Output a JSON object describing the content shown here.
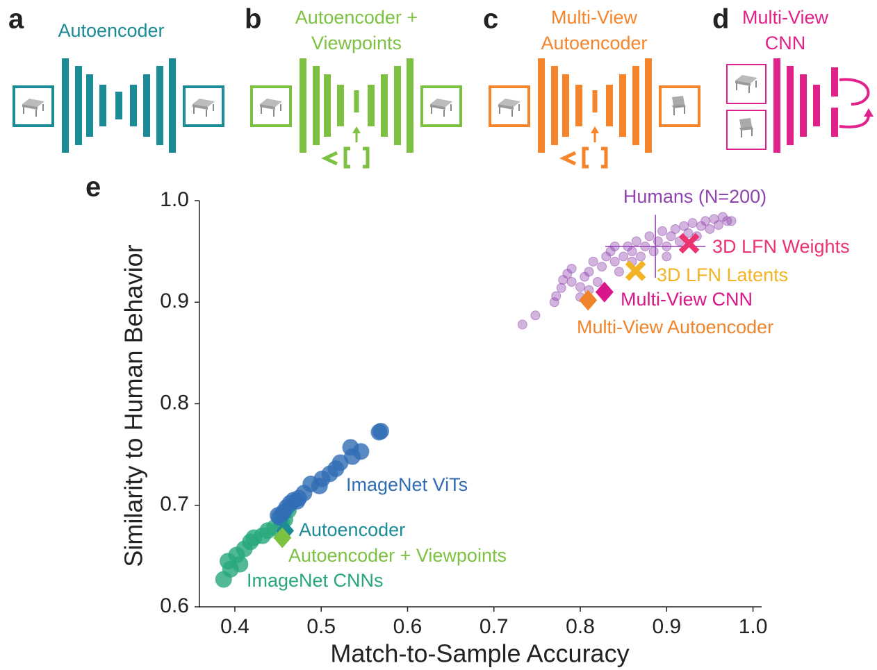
{
  "panels": [
    {
      "letter": "a",
      "title": [
        "Autoencoder"
      ]
    },
    {
      "letter": "b",
      "title": [
        "Autoencoder +",
        "Viewpoints"
      ]
    },
    {
      "letter": "c",
      "title": [
        "Multi-View",
        "Autoencoder"
      ]
    },
    {
      "letter": "d",
      "title": [
        "Multi-View",
        "CNN"
      ]
    }
  ],
  "chart_data": {
    "type": "scatter",
    "panel_label": "e",
    "xlabel": "Match-to-Sample Accuracy",
    "ylabel": "Similarity to Human Behavior",
    "xlim": [
      0.359,
      1.01
    ],
    "ylim": [
      0.6,
      1.0
    ],
    "xticks": [
      0.4,
      0.5,
      0.6,
      0.7,
      0.8,
      0.9,
      {
        "value": 1,
        "label": "1.0"
      }
    ],
    "yticks": [
      0.6,
      0.7,
      0.8,
      0.9,
      {
        "value": 1,
        "label": "1.0"
      }
    ],
    "series": [
      {
        "name": "Humans (N=200)",
        "color": "#8e44ad",
        "marker": "circle",
        "x": [
          0.733,
          0.748,
          0.77,
          0.772,
          0.778,
          0.78,
          0.785,
          0.79,
          0.79,
          0.8,
          0.805,
          0.81,
          0.815,
          0.82,
          0.825,
          0.83,
          0.835,
          0.84,
          0.845,
          0.85,
          0.855,
          0.86,
          0.865,
          0.87,
          0.875,
          0.88,
          0.885,
          0.89,
          0.895,
          0.9,
          0.905,
          0.91,
          0.915,
          0.92,
          0.925,
          0.93,
          0.935,
          0.94,
          0.945,
          0.95,
          0.955,
          0.96,
          0.965,
          0.97,
          0.975,
          0.8,
          0.81,
          0.86,
          0.84,
          0.9
        ],
        "values": [
          0.878,
          0.887,
          0.9,
          0.906,
          0.914,
          0.922,
          0.928,
          0.933,
          0.92,
          0.915,
          0.925,
          0.93,
          0.94,
          0.92,
          0.935,
          0.945,
          0.95,
          0.94,
          0.93,
          0.945,
          0.955,
          0.95,
          0.96,
          0.945,
          0.955,
          0.965,
          0.95,
          0.96,
          0.97,
          0.955,
          0.965,
          0.972,
          0.96,
          0.975,
          0.968,
          0.978,
          0.965,
          0.975,
          0.98,
          0.972,
          0.982,
          0.976,
          0.984,
          0.98,
          0.98,
          0.905,
          0.912,
          0.94,
          0.955,
          0.945
        ],
        "mean_x": 0.887,
        "mean_y": 0.955,
        "xerr": 0.058,
        "yerr": 0.031
      },
      {
        "name": "ImageNet ViTs",
        "color": "#2f6db5",
        "marker": "big",
        "x": [
          0.569,
          0.567,
          0.546,
          0.536,
          0.534,
          0.522,
          0.517,
          0.51,
          0.501,
          0.498,
          0.488,
          0.48,
          0.474,
          0.468,
          0.464,
          0.46,
          0.456,
          0.452,
          0.45,
          0.472
        ],
        "values": [
          0.773,
          0.772,
          0.753,
          0.748,
          0.757,
          0.742,
          0.736,
          0.731,
          0.726,
          0.719,
          0.721,
          0.712,
          0.707,
          0.705,
          0.702,
          0.698,
          0.693,
          0.688,
          0.69,
          0.704
        ]
      },
      {
        "name": "ImageNet CNNs",
        "color": "#27a77a",
        "marker": "big",
        "x": [
          0.387,
          0.395,
          0.392,
          0.402,
          0.411,
          0.418,
          0.422,
          0.432,
          0.438,
          0.446,
          0.454,
          0.458,
          0.462,
          0.406
        ],
        "values": [
          0.627,
          0.637,
          0.645,
          0.651,
          0.657,
          0.664,
          0.668,
          0.67,
          0.675,
          0.678,
          0.683,
          0.686,
          0.695,
          0.642
        ]
      },
      {
        "name": "Autoencoder",
        "color": "#1b8b96",
        "marker": "diamond",
        "x": [
          0.458
        ],
        "values": [
          0.675
        ]
      },
      {
        "name": "Autoencoder + Viewpoints",
        "color": "#7dc142",
        "marker": "diamond",
        "x": [
          0.455
        ],
        "values": [
          0.668
        ]
      },
      {
        "name": "Multi-View Autoencoder",
        "color": "#f0842a",
        "marker": "diamond",
        "x": [
          0.809
        ],
        "values": [
          0.902
        ]
      },
      {
        "name": "Multi-View CNN",
        "color": "#d8168a",
        "marker": "diamond",
        "x": [
          0.828
        ],
        "values": [
          0.91
        ]
      },
      {
        "name": "3D LFN Latents",
        "color": "#f2b324",
        "marker": "cross",
        "x": [
          0.864
        ],
        "values": [
          0.931
        ]
      },
      {
        "name": "3D LFN Weights",
        "color": "#ea3370",
        "marker": "cross",
        "x": [
          0.926
        ],
        "values": [
          0.958
        ]
      }
    ]
  }
}
